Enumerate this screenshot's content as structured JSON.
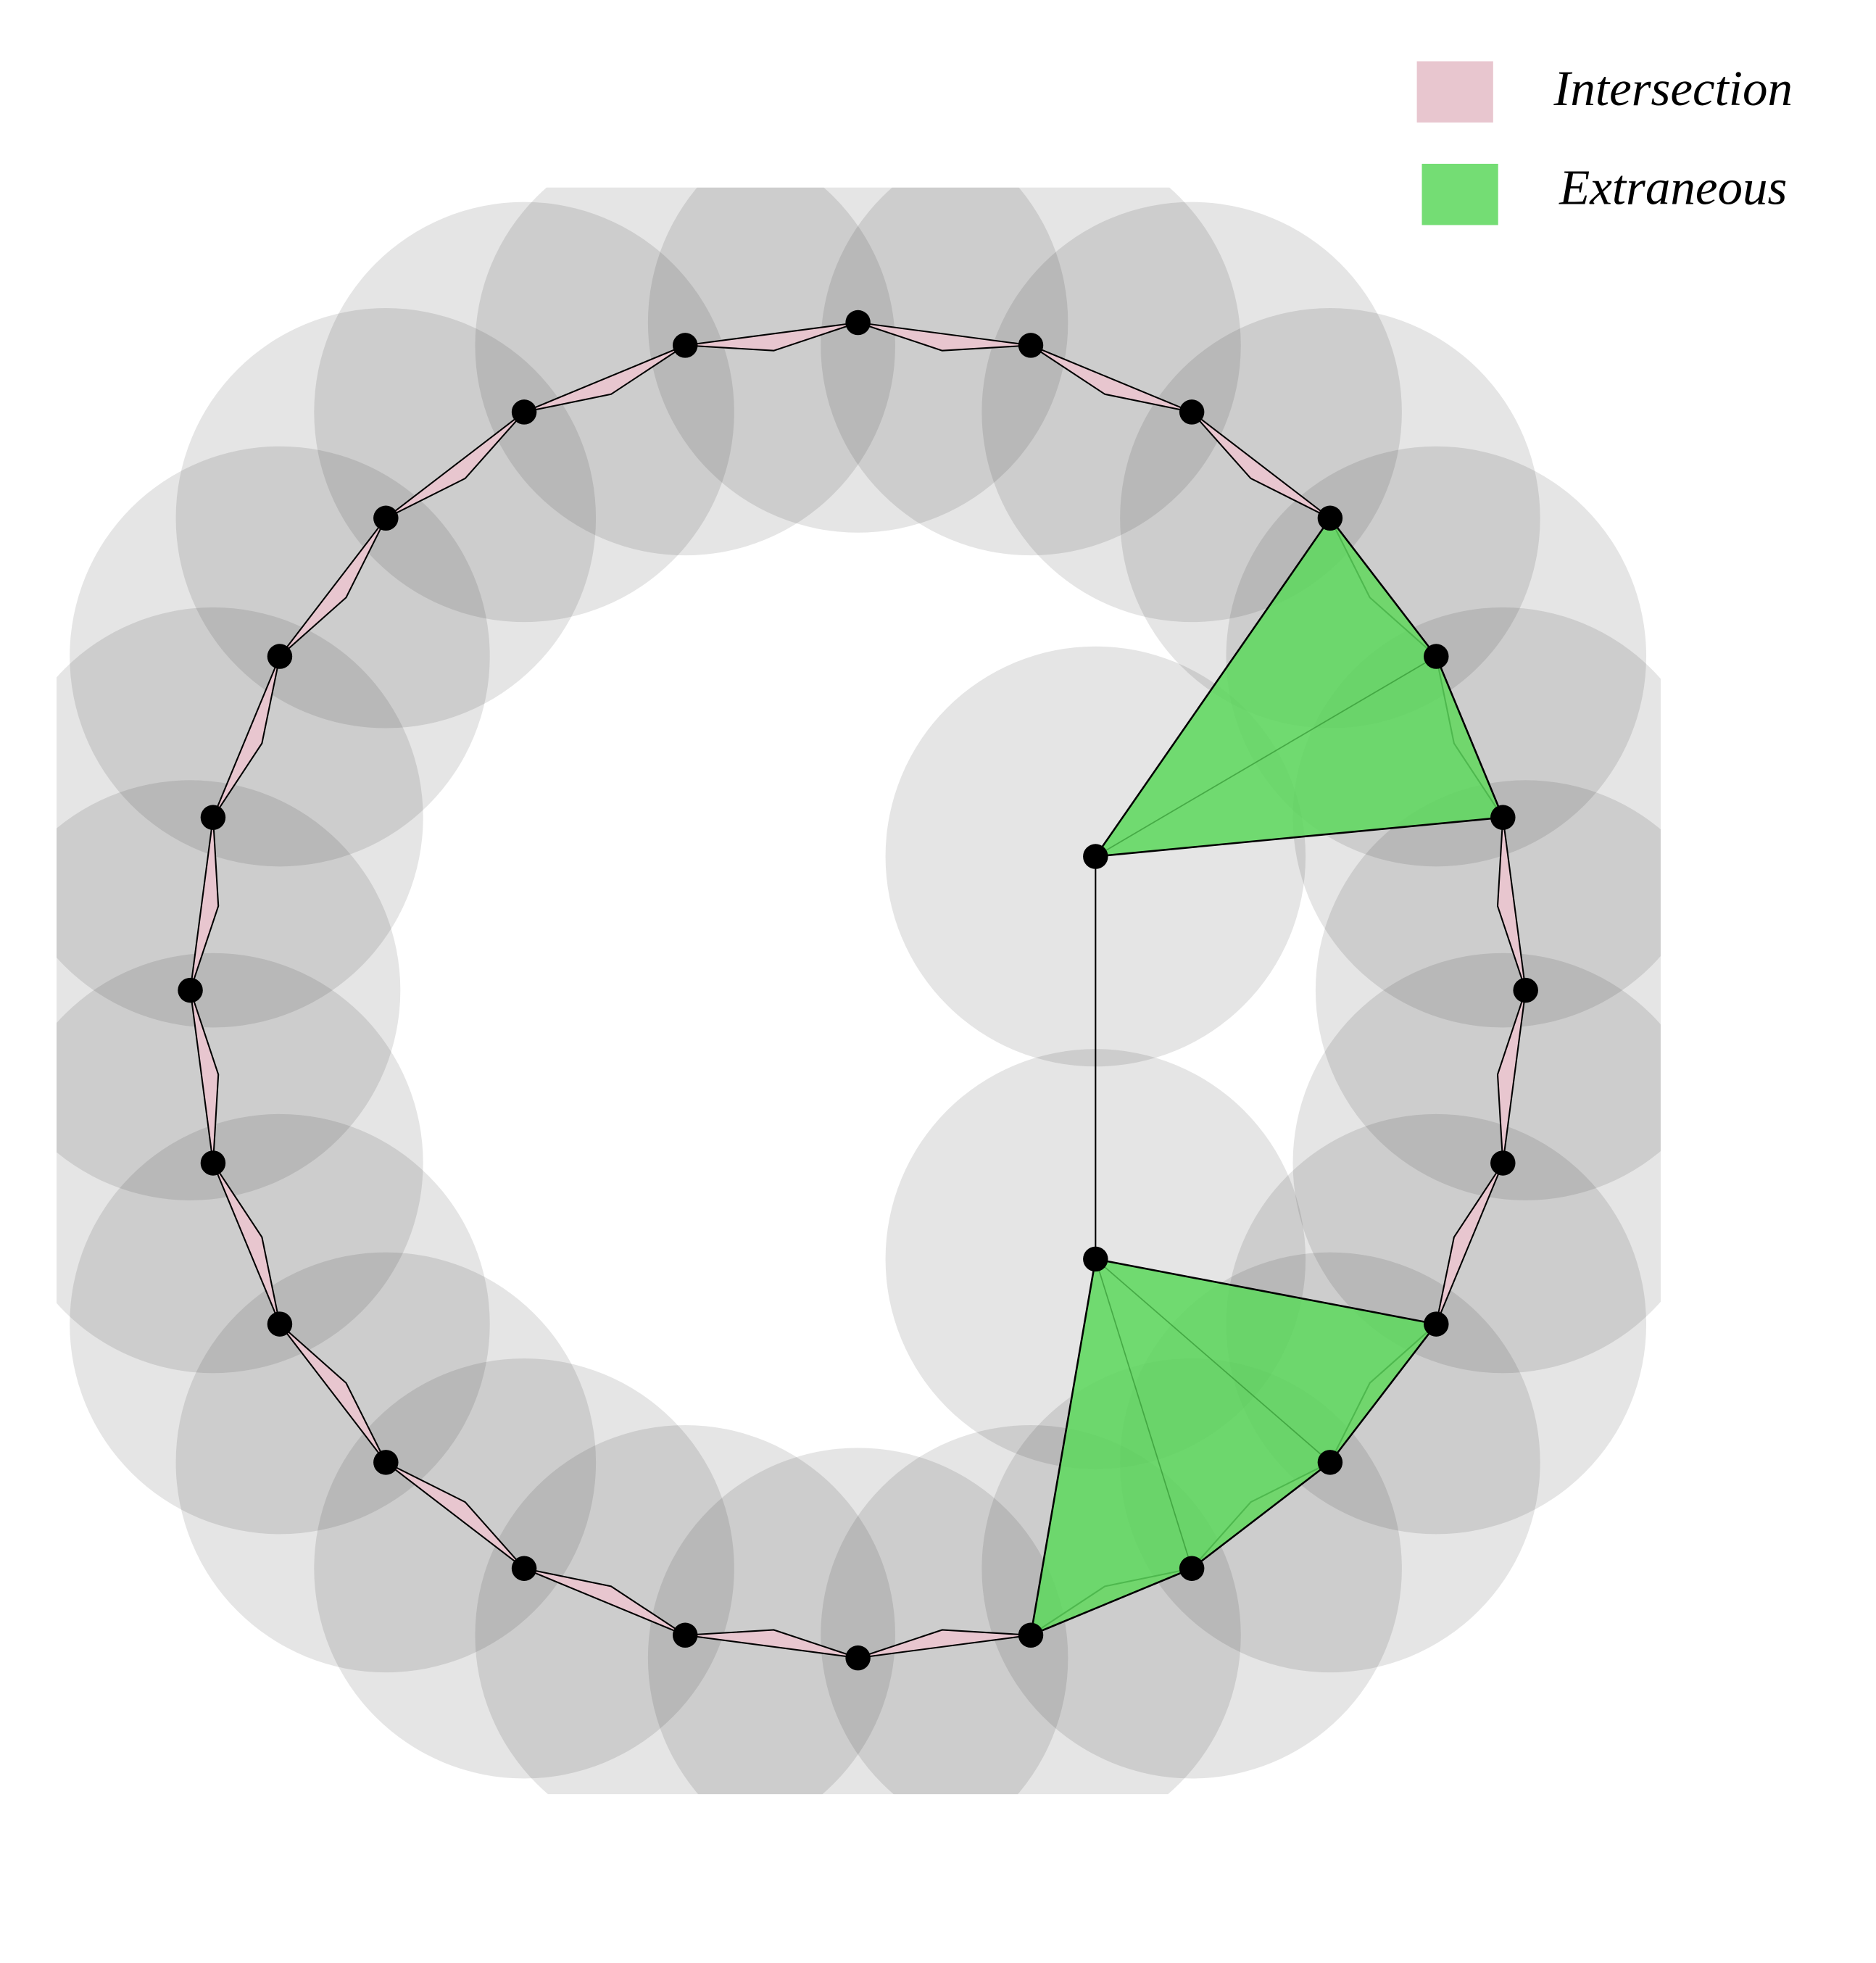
{
  "legend": {
    "items": [
      {
        "label": "Intersection"
      },
      {
        "label": "Extraneous"
      }
    ]
  }
}
